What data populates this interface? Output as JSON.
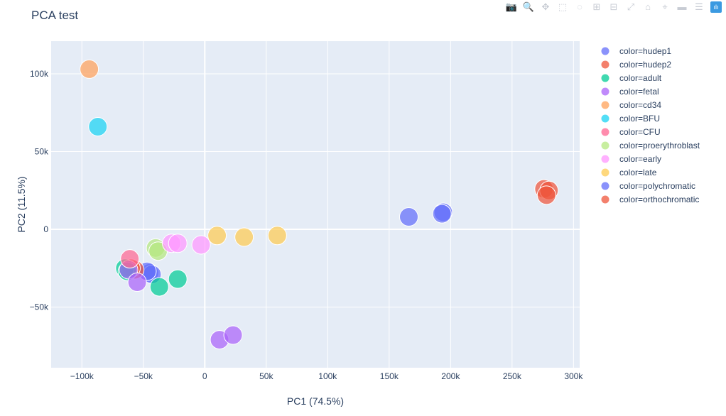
{
  "title": "PCA test",
  "modebar": [
    {
      "name": "camera-icon",
      "glyph": "📷"
    },
    {
      "name": "zoom-icon",
      "glyph": "🔍",
      "active": true
    },
    {
      "name": "pan-icon",
      "glyph": "✥"
    },
    {
      "name": "box-select-icon",
      "glyph": "⬚"
    },
    {
      "name": "lasso-icon",
      "glyph": "◌"
    },
    {
      "name": "zoom-in-icon",
      "glyph": "⊞"
    },
    {
      "name": "zoom-out-icon",
      "glyph": "⊟"
    },
    {
      "name": "autoscale-icon",
      "glyph": "⤢"
    },
    {
      "name": "reset-axes-icon",
      "glyph": "⌂"
    },
    {
      "name": "spike-lines-icon",
      "glyph": "⌖"
    },
    {
      "name": "hover-closest-icon",
      "glyph": "▬"
    },
    {
      "name": "hover-compare-icon",
      "glyph": "☰"
    },
    {
      "name": "plotly-logo-icon",
      "glyph": "ılı",
      "logo": true
    }
  ],
  "chart_data": {
    "type": "scatter",
    "title": "PCA test",
    "xlabel": "PC1 (74.5%)",
    "ylabel": "PC2 (11.5%)",
    "xlim": [
      -125000,
      305000
    ],
    "ylim": [
      -89000,
      121000
    ],
    "xticks": [
      {
        "value": -100000,
        "label": "−100k"
      },
      {
        "value": -50000,
        "label": "−50k"
      },
      {
        "value": 0,
        "label": "0"
      },
      {
        "value": 50000,
        "label": "50k"
      },
      {
        "value": 100000,
        "label": "100k"
      },
      {
        "value": 150000,
        "label": "150k"
      },
      {
        "value": 200000,
        "label": "200k"
      },
      {
        "value": 250000,
        "label": "250k"
      },
      {
        "value": 300000,
        "label": "300k"
      }
    ],
    "yticks": [
      {
        "value": -50000,
        "label": "−50k"
      },
      {
        "value": 0,
        "label": "0"
      },
      {
        "value": 50000,
        "label": "50k"
      },
      {
        "value": 100000,
        "label": "100k"
      }
    ],
    "grid": true,
    "legend_position": "right",
    "series": [
      {
        "name": "color=hudep1",
        "color": "#636efa",
        "x": [
          -45000,
          -43000,
          -47000
        ],
        "y": [
          -28000,
          -29000,
          -27000
        ]
      },
      {
        "name": "color=hudep2",
        "color": "#ef553b",
        "x": [
          -57000,
          -60000
        ],
        "y": [
          -26000,
          -25000
        ]
      },
      {
        "name": "color=adult",
        "color": "#00cc96",
        "x": [
          -65000,
          -63000,
          -37000,
          -22000
        ],
        "y": [
          -25000,
          -27000,
          -37000,
          -32000
        ]
      },
      {
        "name": "color=fetal",
        "color": "#ab63fa",
        "x": [
          -62000,
          -55000,
          12000,
          23000
        ],
        "y": [
          -26000,
          -34000,
          -71000,
          -68000
        ]
      },
      {
        "name": "color=cd34",
        "color": "#ffa15a",
        "x": [
          -94000
        ],
        "y": [
          103000
        ]
      },
      {
        "name": "color=BFU",
        "color": "#19d3f3",
        "x": [
          -87000
        ],
        "y": [
          66000
        ]
      },
      {
        "name": "color=CFU",
        "color": "#ff6692",
        "x": [
          -61000
        ],
        "y": [
          -19000
        ]
      },
      {
        "name": "color=proerythroblast",
        "color": "#b6e880",
        "x": [
          -40000,
          -38000
        ],
        "y": [
          -12000,
          -14000
        ]
      },
      {
        "name": "color=early",
        "color": "#ff97ff",
        "x": [
          -27000,
          -22000,
          -3000
        ],
        "y": [
          -9000,
          -9000,
          -10000
        ]
      },
      {
        "name": "color=late",
        "color": "#fecb52",
        "x": [
          10000,
          32000,
          59000
        ],
        "y": [
          -4000,
          -5000,
          -4000
        ]
      },
      {
        "name": "color=polychromatic",
        "color": "#636efa",
        "x": [
          166000,
          194000,
          193000
        ],
        "y": [
          8000,
          11000,
          10000
        ]
      },
      {
        "name": "color=orthochromatic",
        "color": "#ef553b",
        "x": [
          276000,
          280000,
          278000
        ],
        "y": [
          26000,
          25000,
          22000
        ]
      }
    ]
  }
}
